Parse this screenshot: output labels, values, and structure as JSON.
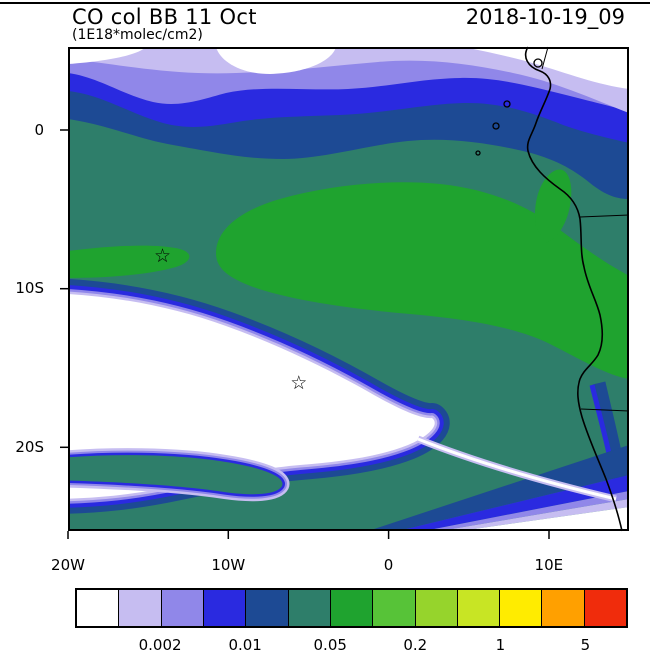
{
  "header": {
    "title": "CO col BB 11 Oct",
    "units": "(1E18*molec/cm2)",
    "timestamp": "2018-10-19_09"
  },
  "axes": {
    "x": {
      "min": -20,
      "max": 15,
      "ticks": [
        {
          "label": "20W",
          "value": -20
        },
        {
          "label": "10W",
          "value": -10
        },
        {
          "label": "0",
          "value": 0
        },
        {
          "label": "10E",
          "value": 10
        }
      ]
    },
    "y": {
      "min": -25.3,
      "max": 5.2,
      "ticks": [
        {
          "label": "0",
          "value": 0
        },
        {
          "label": "10S",
          "value": -10
        },
        {
          "label": "20S",
          "value": -20
        }
      ]
    }
  },
  "colorbar": {
    "colors": [
      "#ffffff",
      "#c6bdf1",
      "#9087e9",
      "#2a2ae0",
      "#1d4a94",
      "#2e7e6a",
      "#1fa32f",
      "#57c338",
      "#96d42c",
      "#c8e524",
      "#ffec00",
      "#ffa000",
      "#f02c0c"
    ],
    "labels": [
      {
        "text": "0.002",
        "boundary_index": 2
      },
      {
        "text": "0.01",
        "boundary_index": 4
      },
      {
        "text": "0.05",
        "boundary_index": 6
      },
      {
        "text": "0.2",
        "boundary_index": 8
      },
      {
        "text": "1",
        "boundary_index": 10
      },
      {
        "text": "5",
        "boundary_index": 12
      }
    ]
  },
  "chart_data": {
    "type": "heatmap",
    "subtype": "filled contour map over longitude/latitude (CO column)",
    "title": "CO col BB 11 Oct",
    "units": "1E18*molec/cm2",
    "timestamp": "2018-10-19_09",
    "xlim": [
      -20,
      15
    ],
    "ylim": [
      -25.3,
      5.2
    ],
    "x_tick_labels": [
      "20W",
      "10W",
      "0",
      "10E"
    ],
    "y_tick_labels": [
      "0",
      "10S",
      "20S"
    ],
    "colorbar_tick_labels": [
      "0.002",
      "0.01",
      "0.05",
      "0.2",
      "1",
      "5"
    ],
    "legend_position": "bottom",
    "grid": false,
    "markers": [
      {
        "type": "star",
        "lon": -14.1,
        "lat": -8.1
      },
      {
        "type": "star",
        "lon": -5.6,
        "lat": -16.1
      }
    ],
    "features": [
      {
        "level": "< 0.002 (white)",
        "description": "Large comma/hook-shaped minimum over the central-west subtropical South Atlantic (~10S-22S), a wedge in the bottom-right corner, and patches along the top edge"
      },
      {
        "level": "0.002-0.01 (lavender/purple)",
        "description": "Fringes rimming the white minima and a zonal band across the far north including the top-right land area"
      },
      {
        "level": "0.01-0.02 (blue/navy)",
        "description": "Sharp gradient bands along the northern edge (~0-2N), around the subtropical minimum, and a dark band hugging the Angola/Namibia coast toward the bottom-right"
      },
      {
        "level": "~0.02-0.05 (dark teal)",
        "description": "Background value over most of the central and eastern basin"
      },
      {
        "level": "~0.05-0.1 (green)",
        "description": "Broad biomass-burning plume from mid-basin (~5S) stretching east-southeast to the African coast, a small tongue at the west edge near 8S, and a coastal strip near 2S"
      }
    ]
  }
}
